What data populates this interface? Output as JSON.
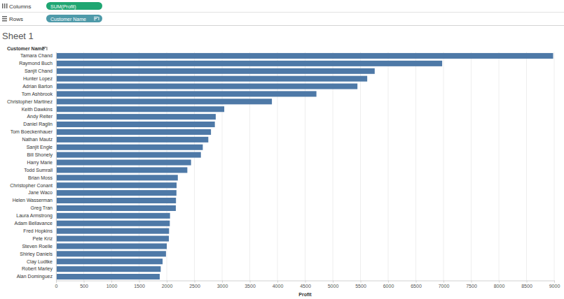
{
  "toolbar": {
    "columns_label": "Columns",
    "columns_pill": "SUM(Profit)",
    "rows_label": "Rows",
    "rows_pill": "Customer Name"
  },
  "chart_data": {
    "type": "bar",
    "orientation": "horizontal",
    "title": "Sheet 1",
    "x_label": "Profit",
    "y_label": "Customer Name",
    "categories": [
      "Tamara Chand",
      "Raymond Buch",
      "Sanjit Chand",
      "Hunter Lopez",
      "Adrian Barton",
      "Tom Ashbrook",
      "Christopher Martinez",
      "Keith Dawkins",
      "Andy Reiter",
      "Daniel Raglin",
      "Tom Boeckenhauer",
      "Nathan Mautz",
      "Sanjit Engle",
      "Bill Shonely",
      "Harry Marie",
      "Todd Sumrall",
      "Brian Moss",
      "Christopher Conant",
      "Jane Waco",
      "Helen Wasserman",
      "Greg Tran",
      "Laura Armstrong",
      "Adam Bellavance",
      "Fred Hopkins",
      "Pete Kriz",
      "Steven Roelle",
      "Shirley Daniels",
      "Clay Ludtke",
      "Robert Marley",
      "Alan Dominguez"
    ],
    "values": [
      8981,
      6976,
      5757,
      5622,
      5445,
      4704,
      3900,
      3039,
      2885,
      2869,
      2799,
      2751,
      2651,
      2617,
      2439,
      2372,
      2200,
      2178,
      2175,
      2167,
      2164,
      2059,
      2055,
      2042,
      2038,
      2000,
      1986,
      1925,
      1891,
      1873
    ],
    "color": "#4e79a7",
    "xlim": [
      0,
      9000
    ],
    "xticks": [
      0,
      500,
      1000,
      1500,
      2000,
      2500,
      3000,
      3500,
      4000,
      4500,
      5000,
      5500,
      6000,
      6500,
      7000,
      7500,
      8000,
      8500,
      9000
    ],
    "grid": true
  }
}
